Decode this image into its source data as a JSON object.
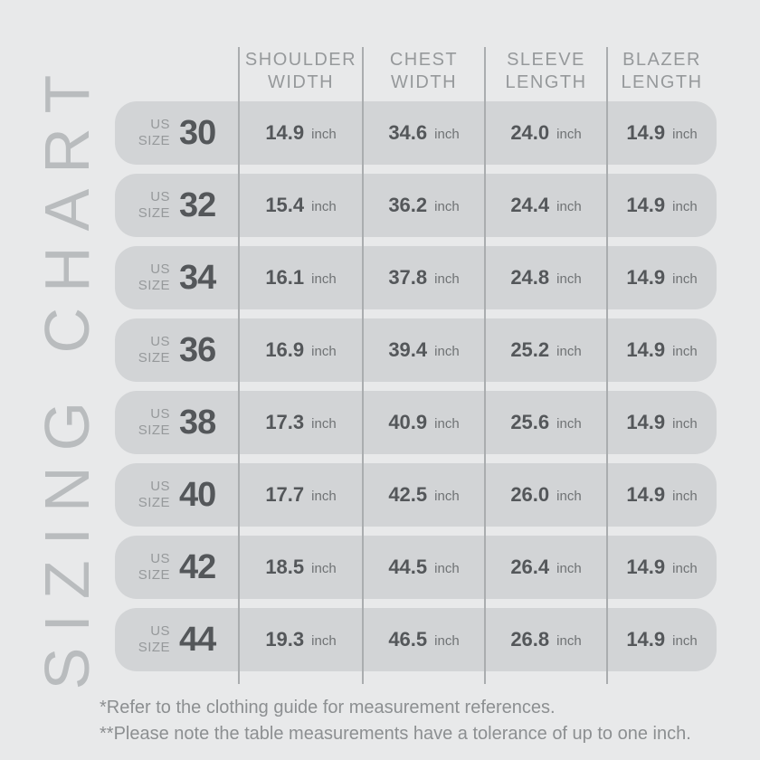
{
  "title": {
    "vertical_label": "SIZING CHART"
  },
  "table": {
    "size_label_top": "US",
    "size_label_bottom": "SIZE",
    "unit": "inch",
    "columns": [
      {
        "line1": "SHOULDER",
        "line2": "WIDTH"
      },
      {
        "line1": "CHEST",
        "line2": "WIDTH"
      },
      {
        "line1": "SLEEVE",
        "line2": "LENGTH"
      },
      {
        "line1": "BLAZER",
        "line2": "LENGTH"
      }
    ],
    "rows": [
      {
        "size": "30",
        "values": [
          "14.9",
          "34.6",
          "24.0",
          "14.9"
        ]
      },
      {
        "size": "32",
        "values": [
          "15.4",
          "36.2",
          "24.4",
          "14.9"
        ]
      },
      {
        "size": "34",
        "values": [
          "16.1",
          "37.8",
          "24.8",
          "14.9"
        ]
      },
      {
        "size": "36",
        "values": [
          "16.9",
          "39.4",
          "25.2",
          "14.9"
        ]
      },
      {
        "size": "38",
        "values": [
          "17.3",
          "40.9",
          "25.6",
          "14.9"
        ]
      },
      {
        "size": "40",
        "values": [
          "17.7",
          "42.5",
          "26.0",
          "14.9"
        ]
      },
      {
        "size": "42",
        "values": [
          "18.5",
          "44.5",
          "26.4",
          "14.9"
        ]
      },
      {
        "size": "44",
        "values": [
          "19.3",
          "46.5",
          "26.8",
          "14.9"
        ]
      }
    ]
  },
  "footnotes": {
    "line1": "*Refer to the clothing guide for measurement references.",
    "line2": "**Please note the table measurements have a tolerance of up to one inch."
  },
  "colors": {
    "background": "#e8e9ea",
    "row_pill": "#d2d4d6",
    "divider": "#aaadaf",
    "header_text": "#96999b",
    "value_text": "#54575a",
    "unit_text": "#6f7274",
    "footnote_text": "#8c8f91",
    "watermark_text": "#b9bcbe"
  },
  "chart_data": {
    "type": "table",
    "title": "SIZING CHART",
    "columns": [
      "US SIZE",
      "SHOULDER WIDTH (inch)",
      "CHEST WIDTH (inch)",
      "SLEEVE LENGTH (inch)",
      "BLAZER LENGTH (inch)"
    ],
    "rows": [
      [
        30,
        14.9,
        34.6,
        24.0,
        14.9
      ],
      [
        32,
        15.4,
        36.2,
        24.4,
        14.9
      ],
      [
        34,
        16.1,
        37.8,
        24.8,
        14.9
      ],
      [
        36,
        16.9,
        39.4,
        25.2,
        14.9
      ],
      [
        38,
        17.3,
        40.9,
        25.6,
        14.9
      ],
      [
        40,
        17.7,
        42.5,
        26.0,
        14.9
      ],
      [
        42,
        18.5,
        44.5,
        26.4,
        14.9
      ],
      [
        44,
        19.3,
        46.5,
        26.8,
        14.9
      ]
    ],
    "footnotes": [
      "*Refer to the clothing guide for measurement references.",
      "**Please note the table measurements have a tolerance of up to one inch."
    ]
  }
}
